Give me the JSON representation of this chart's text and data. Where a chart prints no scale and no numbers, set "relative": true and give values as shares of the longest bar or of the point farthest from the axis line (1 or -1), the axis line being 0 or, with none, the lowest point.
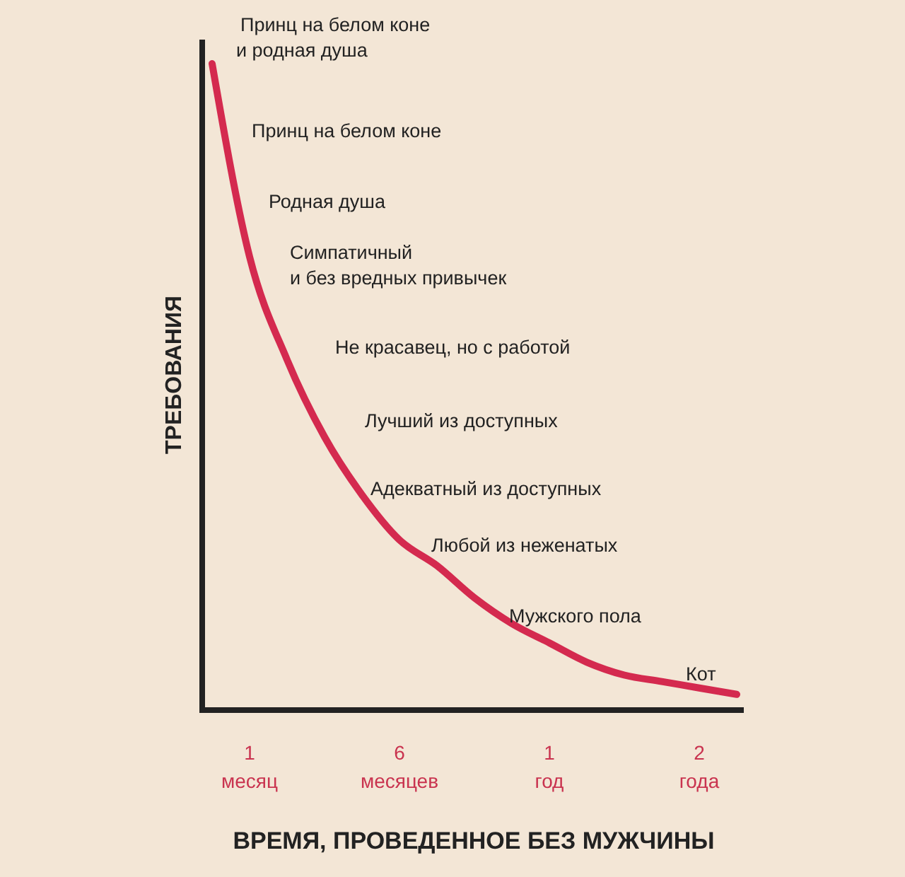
{
  "chart_data": {
    "type": "line",
    "relative": true,
    "xlabel": "ВРЕМЯ, ПРОВЕДЕННОЕ БЕЗ МУЖЧИНЫ",
    "ylabel": "ТРЕБОВАНИЯ",
    "categories": [
      null,
      "1 месяц",
      null,
      null,
      null,
      "6 месяцев",
      null,
      null,
      null,
      "1 год",
      null,
      null,
      null,
      "2 года",
      null
    ],
    "series": [
      {
        "color": "#d42a4f",
        "values": [
          1.0,
          0.7,
          0.54,
          0.42,
          0.33,
          0.26,
          0.22,
          0.17,
          0.13,
          0.1,
          0.07,
          0.05,
          0.04,
          0.03,
          0.02
        ]
      }
    ],
    "annotations": [
      "Принц на белом коне\nи родная душа",
      "Принц на белом коне",
      "Родная душа",
      "Симпатичный\nи без вредных привычек",
      "Не красавец, но с работой",
      "Лучший из доступных",
      "Адекватный из доступных",
      "Любой из неженатых",
      "Мужского пола",
      "Кот"
    ],
    "marker": "none",
    "line_style": "solid"
  }
}
